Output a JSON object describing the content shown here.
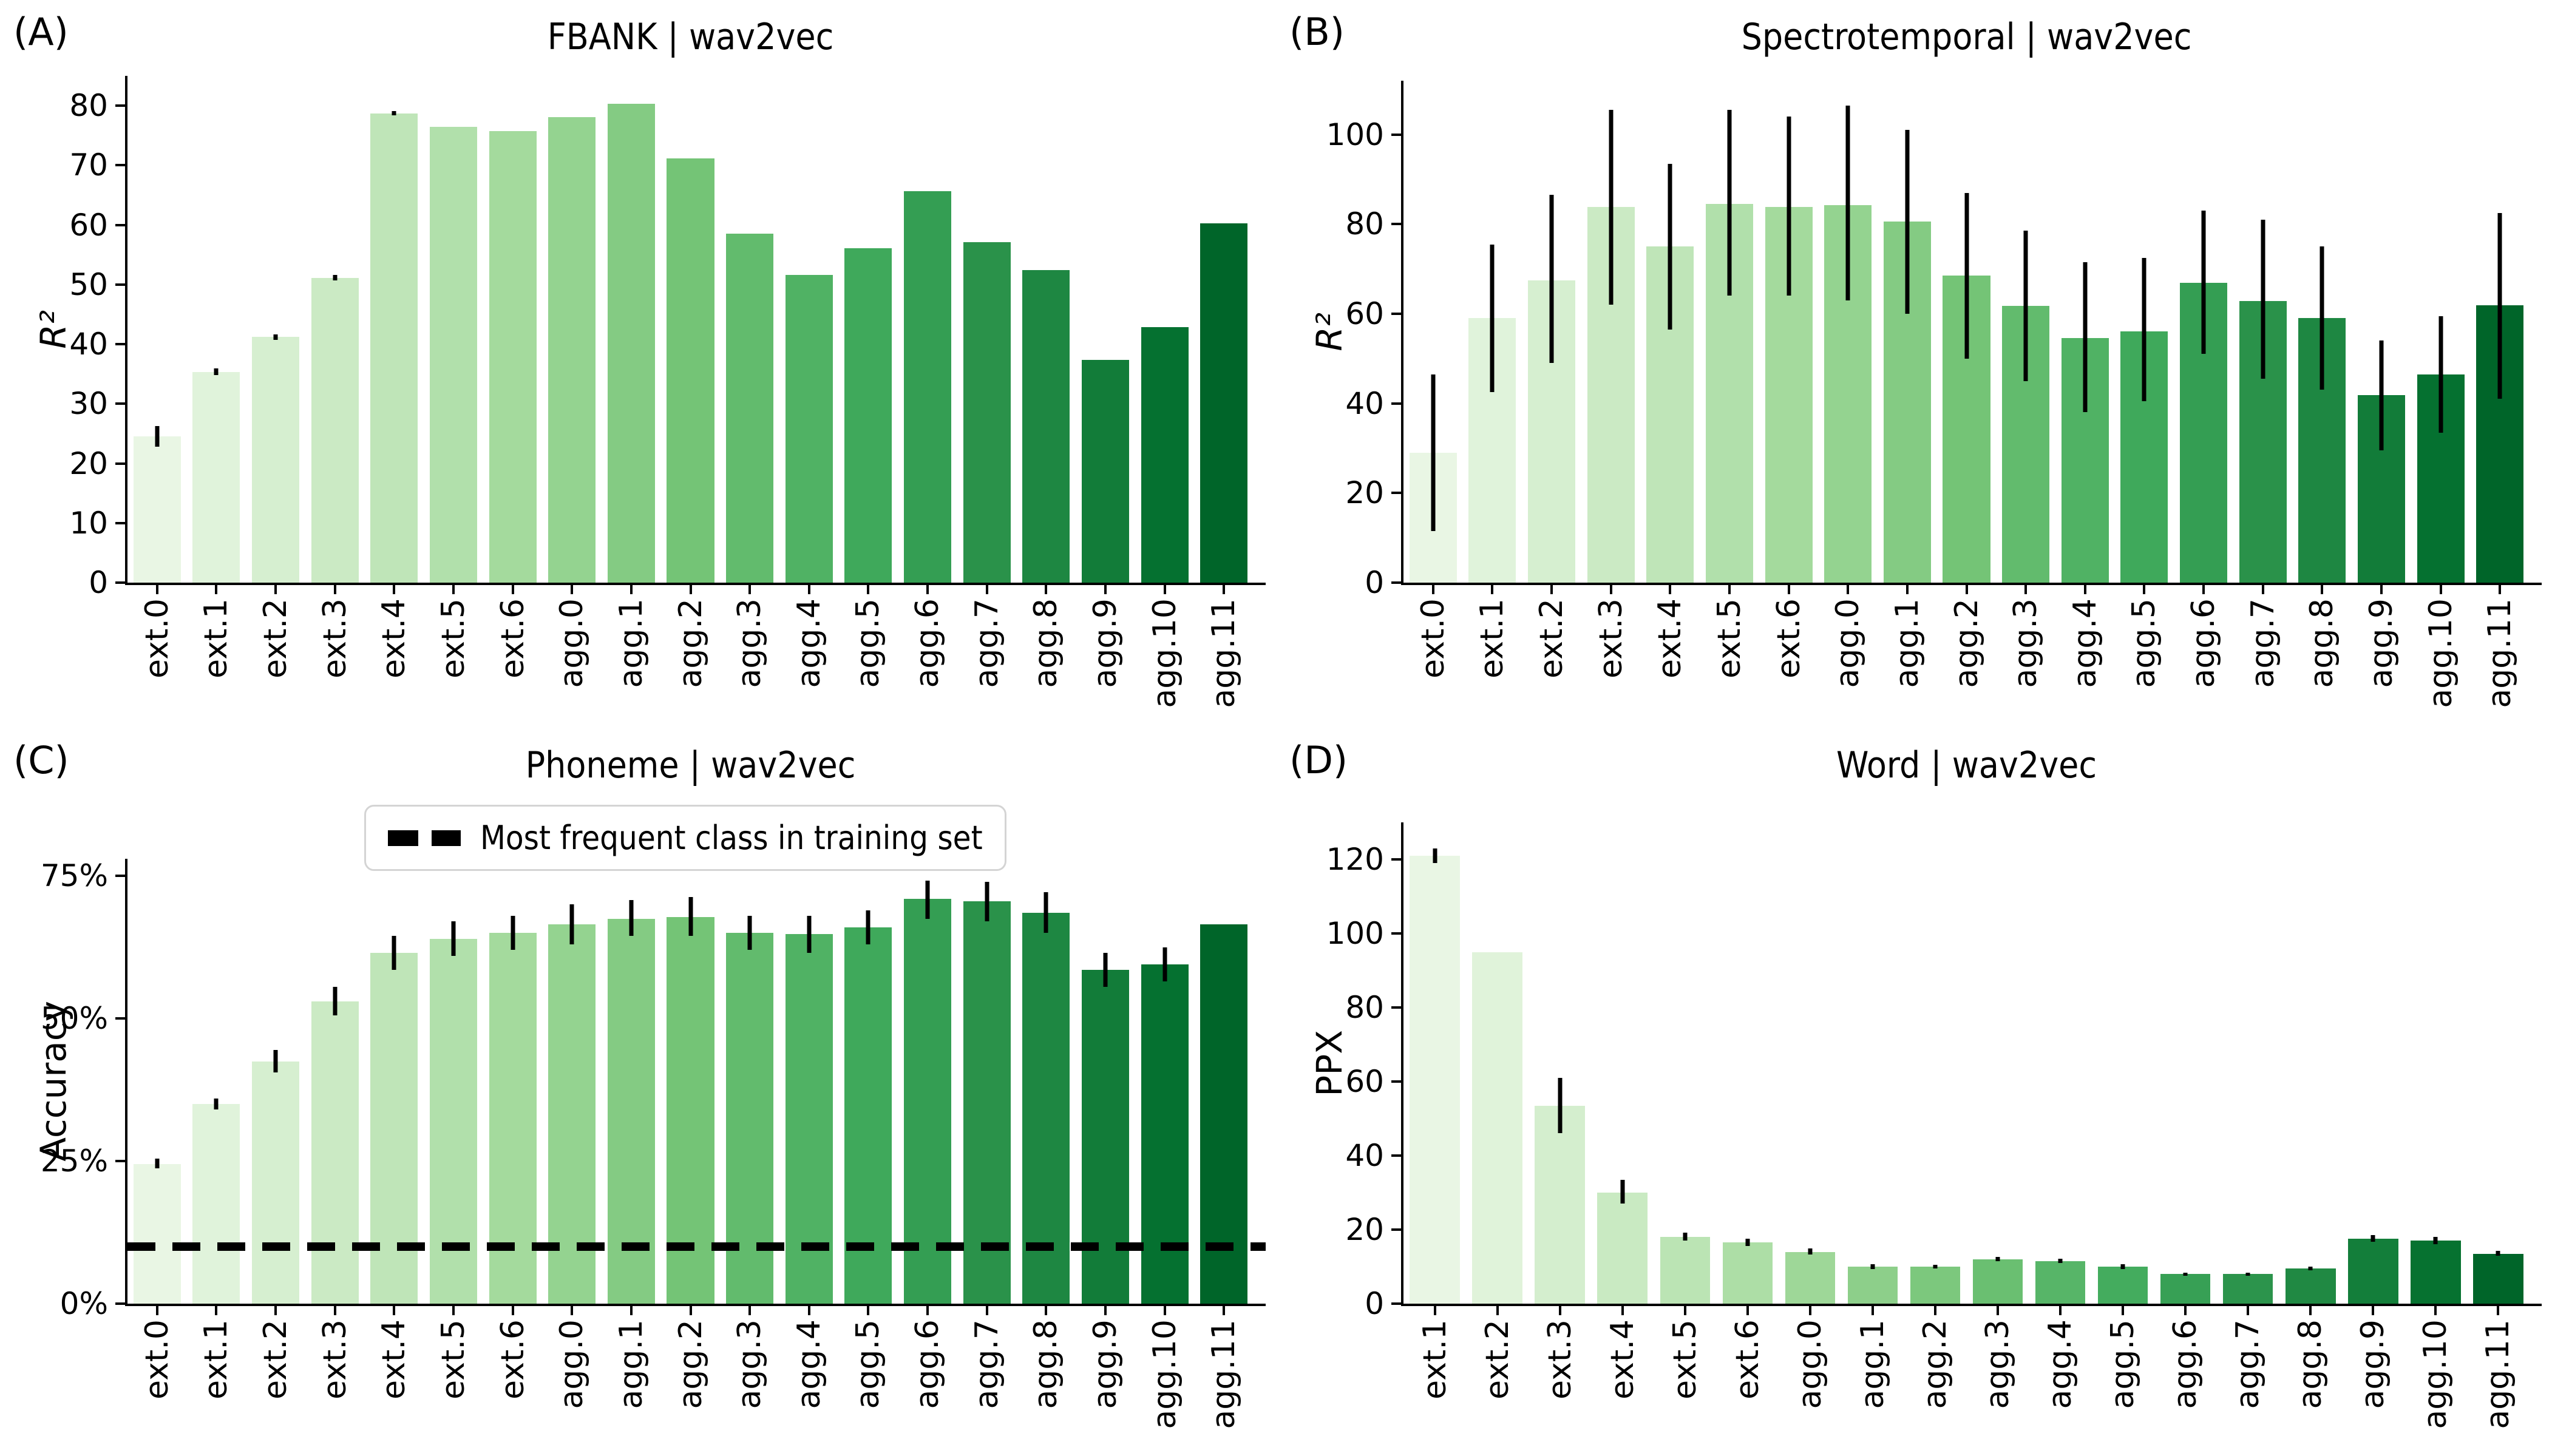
{
  "figure": {
    "background": "#ffffff",
    "axis_color": "#000000",
    "errorbar_color": "#000000"
  },
  "chart_data": [
    {
      "id": "A",
      "panel_label": "(A)",
      "title": "FBANK | wav2vec",
      "type": "bar",
      "ylabel": "R²",
      "ylabel_italic": true,
      "ylim": [
        0,
        85
      ],
      "grid": false,
      "ytick_values": [
        0,
        10,
        20,
        30,
        40,
        50,
        60,
        70,
        80
      ],
      "ytick_labels": [
        "0",
        "10",
        "20",
        "30",
        "40",
        "50",
        "60",
        "70",
        "80"
      ],
      "categories": [
        "ext.0",
        "ext.1",
        "ext.2",
        "ext.3",
        "ext.4",
        "ext.5",
        "ext.6",
        "agg.0",
        "agg.1",
        "agg.2",
        "agg.3",
        "agg.4",
        "agg.5",
        "agg.6",
        "agg.7",
        "agg.8",
        "agg.9",
        "agg.10",
        "agg.11"
      ],
      "values": [
        24.5,
        35.3,
        41.2,
        51.1,
        78.7,
        76.5,
        75.7,
        78.1,
        80.3,
        71.2,
        58.5,
        51.6,
        56.1,
        65.7,
        57.1,
        52.4,
        37.4,
        42.9,
        60.3
      ],
      "errors": [
        [
          22.8,
          26.3
        ],
        [
          34.8,
          35.9
        ],
        [
          40.7,
          41.6
        ],
        [
          50.7,
          51.6
        ],
        [
          78.4,
          79.1
        ],
        [
          76.5,
          76.5
        ],
        [
          75.7,
          75.7
        ],
        [
          78.1,
          78.1
        ],
        [
          80.3,
          80.3
        ],
        [
          71.2,
          71.2
        ],
        [
          58.5,
          58.5
        ],
        [
          51.6,
          51.6
        ],
        [
          56.1,
          56.1
        ],
        [
          65.7,
          65.7
        ],
        [
          57.1,
          57.1
        ],
        [
          52.4,
          52.4
        ],
        [
          37.4,
          37.4
        ],
        [
          42.9,
          42.9
        ],
        [
          60.3,
          60.3
        ]
      ],
      "bar_colors": [
        "#e9f6e4",
        "#e0f3db",
        "#d6efd0",
        "#cbeac4",
        "#bfe5b8",
        "#b1e0ab",
        "#a4da9d",
        "#94d390",
        "#84cb83",
        "#74c476",
        "#62bb6d",
        "#50b264",
        "#3fa95b",
        "#349e53",
        "#2a924a",
        "#1e8742",
        "#127c39",
        "#057130",
        "#006529"
      ]
    },
    {
      "id": "B",
      "panel_label": "(B)",
      "title": "Spectrotemporal | wav2vec",
      "type": "bar",
      "ylabel": "R²",
      "ylabel_italic": true,
      "ylim": [
        0,
        112
      ],
      "grid": false,
      "ytick_values": [
        0,
        20,
        40,
        60,
        80,
        100
      ],
      "ytick_labels": [
        "0",
        "20",
        "40",
        "60",
        "80",
        "100"
      ],
      "categories": [
        "ext.0",
        "ext.1",
        "ext.2",
        "ext.3",
        "ext.4",
        "ext.5",
        "ext.6",
        "agg.0",
        "agg.1",
        "agg.2",
        "agg.3",
        "agg.4",
        "agg.5",
        "agg.6",
        "agg.7",
        "agg.8",
        "agg.9",
        "agg.10",
        "agg.11"
      ],
      "values": [
        29,
        59,
        67.5,
        83.8,
        75,
        84.5,
        83.8,
        84.3,
        80.6,
        68.5,
        61.8,
        54.6,
        56.1,
        66.9,
        62.9,
        59,
        41.8,
        46.4,
        61.9
      ],
      "errors": [
        [
          11.5,
          46.5
        ],
        [
          42.5,
          75.5
        ],
        [
          49,
          86.5
        ],
        [
          62,
          105.5
        ],
        [
          56.5,
          93.5
        ],
        [
          64,
          105.5
        ],
        [
          64,
          104
        ],
        [
          63,
          106.5
        ],
        [
          60,
          101
        ],
        [
          50,
          87
        ],
        [
          45,
          78.5
        ],
        [
          38,
          71.5
        ],
        [
          40.5,
          72.5
        ],
        [
          51,
          83
        ],
        [
          45.5,
          81
        ],
        [
          43,
          75
        ],
        [
          29.5,
          54
        ],
        [
          33.5,
          59.5
        ],
        [
          41,
          82.5
        ]
      ],
      "bar_colors": [
        "#e9f6e4",
        "#e0f3db",
        "#d6efd0",
        "#cbeac4",
        "#bfe5b8",
        "#b1e0ab",
        "#a4da9d",
        "#94d390",
        "#84cb83",
        "#74c476",
        "#62bb6d",
        "#50b264",
        "#3fa95b",
        "#349e53",
        "#2a924a",
        "#1e8742",
        "#127c39",
        "#057130",
        "#006529"
      ]
    },
    {
      "id": "C",
      "panel_label": "(C)",
      "title": "Phoneme | wav2vec",
      "type": "bar",
      "ylabel": "Accuracy",
      "ylabel_italic": false,
      "ylim": [
        0,
        78
      ],
      "grid": false,
      "ytick_values": [
        0,
        25,
        50,
        75
      ],
      "ytick_labels": [
        "0%",
        "25%",
        "50%",
        "75%"
      ],
      "categories": [
        "ext.0",
        "ext.1",
        "ext.2",
        "ext.3",
        "ext.4",
        "ext.5",
        "ext.6",
        "agg.0",
        "agg.1",
        "agg.2",
        "agg.3",
        "agg.4",
        "agg.5",
        "agg.6",
        "agg.7",
        "agg.8",
        "agg.9",
        "agg.10",
        "agg.11"
      ],
      "values": [
        24.5,
        35,
        42.5,
        53,
        61.5,
        64,
        65,
        66.5,
        67.5,
        67.8,
        65,
        64.8,
        66,
        71,
        70.5,
        68.5,
        58.5,
        59.5,
        66.5
      ],
      "errors": [
        [
          23.7,
          25.4
        ],
        [
          34,
          36
        ],
        [
          40.5,
          44.5
        ],
        [
          50.5,
          55.5
        ],
        [
          58.5,
          64.5
        ],
        [
          61,
          67
        ],
        [
          62,
          68
        ],
        [
          63,
          70
        ],
        [
          64.5,
          70.8
        ],
        [
          64.5,
          71.3
        ],
        [
          62,
          68
        ],
        [
          61.5,
          68
        ],
        [
          63,
          69
        ],
        [
          67.5,
          74.2
        ],
        [
          67,
          74
        ],
        [
          65,
          72.2
        ],
        [
          55.5,
          61.5
        ],
        [
          56.5,
          62.5
        ],
        [
          66.5,
          66.5
        ]
      ],
      "baseline_value": 10,
      "legend_label": "Most frequent class in training set",
      "legend_position": "upper-center",
      "bar_colors": [
        "#e9f6e4",
        "#e0f3db",
        "#d6efd0",
        "#cbeac4",
        "#bfe5b8",
        "#b1e0ab",
        "#a4da9d",
        "#94d390",
        "#84cb83",
        "#74c476",
        "#62bb6d",
        "#50b264",
        "#3fa95b",
        "#349e53",
        "#2a924a",
        "#1e8742",
        "#127c39",
        "#057130",
        "#006529"
      ]
    },
    {
      "id": "D",
      "panel_label": "(D)",
      "title": "Word | wav2vec",
      "type": "bar",
      "ylabel": "PPX",
      "ylabel_italic": false,
      "ylim": [
        0,
        130
      ],
      "grid": false,
      "ytick_values": [
        0,
        20,
        40,
        60,
        80,
        100,
        120
      ],
      "ytick_labels": [
        "0",
        "20",
        "40",
        "60",
        "80",
        "100",
        "120"
      ],
      "categories": [
        "ext.1",
        "ext.2",
        "ext.3",
        "ext.4",
        "ext.5",
        "ext.6",
        "agg.0",
        "agg.1",
        "agg.2",
        "agg.3",
        "agg.4",
        "agg.5",
        "agg.6",
        "agg.7",
        "agg.8",
        "agg.9",
        "agg.10",
        "agg.11"
      ],
      "values": [
        121,
        95,
        53.5,
        30,
        18,
        16.5,
        14,
        10,
        10,
        12,
        11.5,
        10,
        8,
        8,
        9.5,
        17.5,
        17,
        13.5
      ],
      "errors": [
        [
          119,
          123
        ],
        [
          95,
          95
        ],
        [
          46,
          61
        ],
        [
          27,
          33.5
        ],
        [
          17,
          19.2
        ],
        [
          15.5,
          17.5
        ],
        [
          13.2,
          15
        ],
        [
          9.4,
          10.7
        ],
        [
          9.5,
          10.5
        ],
        [
          11.4,
          12.7
        ],
        [
          11,
          12.2
        ],
        [
          9.4,
          10.6
        ],
        [
          7.6,
          8.4
        ],
        [
          7.5,
          8.4
        ],
        [
          9,
          10
        ],
        [
          16.7,
          18.6
        ],
        [
          16.1,
          18
        ],
        [
          13,
          14.2
        ]
      ],
      "bar_colors": [
        "#e9f6e4",
        "#e0f3da",
        "#d4eece",
        "#c9eac2",
        "#bbe4b4",
        "#addea6",
        "#9ed798",
        "#8dcf8a",
        "#7cc87d",
        "#6abf71",
        "#57b568",
        "#44ac5e",
        "#37a055",
        "#2c944c",
        "#208943",
        "#137e3a",
        "#067230",
        "#006529"
      ]
    }
  ]
}
